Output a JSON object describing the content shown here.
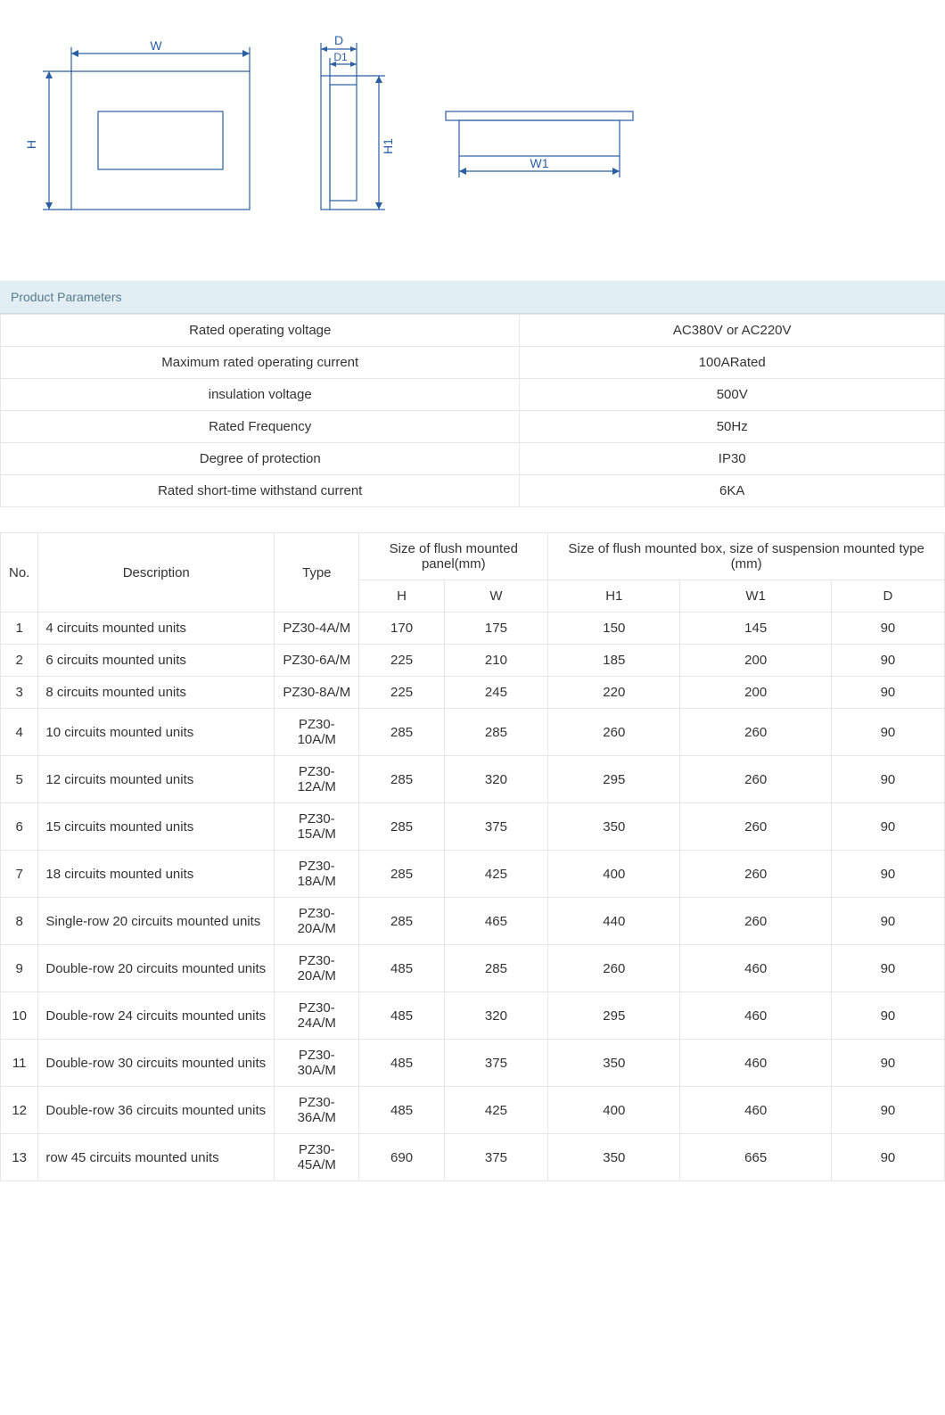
{
  "diagram": {
    "stroke": "#2a5fa3",
    "labels": {
      "W": "W",
      "H": "H",
      "D": "D",
      "D1": "D1",
      "H1": "H1",
      "W1": "W1"
    }
  },
  "section_title": "Product Parameters",
  "params": [
    {
      "label": "Rated operating voltage",
      "value": "AC380V or AC220V"
    },
    {
      "label": "Maximum rated operating current",
      "value": "100ARated"
    },
    {
      "label": "insulation voltage",
      "value": "500V"
    },
    {
      "label": "Rated Frequency",
      "value": "50Hz"
    },
    {
      "label": "Degree of protection",
      "value": "IP30"
    },
    {
      "label": "Rated short-time withstand current",
      "value": "6KA"
    }
  ],
  "spec_headers": {
    "no": "No.",
    "desc": "Description",
    "type": "Type",
    "flush_panel": "Size of flush mounted panel(mm)",
    "flush_box": "Size of flush mounted box, size of suspension mounted type (mm)",
    "H": "H",
    "W": "W",
    "H1": "H1",
    "W1": "W1",
    "D": "D"
  },
  "spec_rows": [
    {
      "no": "1",
      "desc": "4 circuits mounted units",
      "type": "PZ30-4A/M",
      "H": "170",
      "W": "175",
      "H1": "150",
      "W1": "145",
      "D": "90"
    },
    {
      "no": "2",
      "desc": "6 circuits mounted units",
      "type": "PZ30-6A/M",
      "H": "225",
      "W": "210",
      "H1": "185",
      "W1": "200",
      "D": "90"
    },
    {
      "no": "3",
      "desc": "8 circuits mounted units",
      "type": "PZ30-8A/M",
      "H": "225",
      "W": "245",
      "H1": "220",
      "W1": "200",
      "D": "90"
    },
    {
      "no": "4",
      "desc": "10 circuits mounted units",
      "type": "PZ30-10A/M",
      "H": "285",
      "W": "285",
      "H1": "260",
      "W1": "260",
      "D": "90"
    },
    {
      "no": "5",
      "desc": "12 circuits mounted units",
      "type": "PZ30-12A/M",
      "H": "285",
      "W": "320",
      "H1": "295",
      "W1": "260",
      "D": "90"
    },
    {
      "no": "6",
      "desc": "15 circuits mounted units",
      "type": "PZ30-15A/M",
      "H": "285",
      "W": "375",
      "H1": "350",
      "W1": "260",
      "D": "90"
    },
    {
      "no": "7",
      "desc": "18 circuits mounted units",
      "type": "PZ30-18A/M",
      "H": "285",
      "W": "425",
      "H1": "400",
      "W1": "260",
      "D": "90"
    },
    {
      "no": "8",
      "desc": "Single-row 20 circuits mounted units",
      "type": "PZ30-20A/M",
      "H": "285",
      "W": "465",
      "H1": "440",
      "W1": "260",
      "D": "90"
    },
    {
      "no": "9",
      "desc": "Double-row 20 circuits mounted units",
      "type": "PZ30-20A/M",
      "H": "485",
      "W": "285",
      "H1": "260",
      "W1": "460",
      "D": "90"
    },
    {
      "no": "10",
      "desc": "Double-row 24 circuits mounted units",
      "type": "PZ30-24A/M",
      "H": "485",
      "W": "320",
      "H1": "295",
      "W1": "460",
      "D": "90"
    },
    {
      "no": "11",
      "desc": "Double-row 30 circuits mounted units",
      "type": "PZ30-30A/M",
      "H": "485",
      "W": "375",
      "H1": "350",
      "W1": "460",
      "D": "90"
    },
    {
      "no": "12",
      "desc": "Double-row 36 circuits mounted units",
      "type": "PZ30-36A/M",
      "H": "485",
      "W": "425",
      "H1": "400",
      "W1": "460",
      "D": "90"
    },
    {
      "no": "13",
      "desc": "row 45 circuits mounted units",
      "type": "PZ30-45A/M",
      "H": "690",
      "W": "375",
      "H1": "350",
      "W1": "665",
      "D": "90"
    }
  ]
}
